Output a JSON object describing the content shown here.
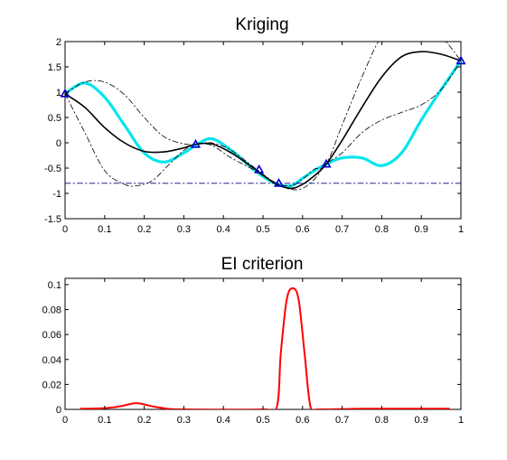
{
  "chart_data": [
    {
      "type": "line",
      "title": "Kriging",
      "xlabel": "",
      "ylabel": "",
      "xlim": [
        0,
        1
      ],
      "ylim": [
        -1.5,
        2
      ],
      "xticks": [
        "0",
        "0.1",
        "0.2",
        "0.3",
        "0.4",
        "0.5",
        "0.6",
        "0.7",
        "0.8",
        "0.9",
        "1"
      ],
      "yticks": [
        "-1.5",
        "-1",
        "-0.5",
        "0",
        "0.5",
        "1",
        "1.5",
        "2"
      ],
      "grid": false,
      "colors": {
        "true_function": "#00e5ee",
        "mean": "#000000",
        "bounds": "#000000",
        "minimum_line": "#000080",
        "observations": "#0000cc"
      },
      "series": [
        {
          "role": "true-function",
          "style": "cyan thick dotted",
          "x": [
            0,
            0.05,
            0.1,
            0.15,
            0.2,
            0.25,
            0.3,
            0.33,
            0.37,
            0.42,
            0.48,
            0.53,
            0.57,
            0.6,
            0.63,
            0.66,
            0.7,
            0.75,
            0.8,
            0.85,
            0.9,
            0.95,
            1
          ],
          "y": [
            0.97,
            1.18,
            0.9,
            0.35,
            -0.2,
            -0.38,
            -0.2,
            -0.05,
            0.08,
            -0.15,
            -0.55,
            -0.8,
            -0.85,
            -0.7,
            -0.55,
            -0.42,
            -0.3,
            -0.3,
            -0.45,
            -0.2,
            0.45,
            1.05,
            1.62
          ]
        },
        {
          "role": "kriging-mean",
          "style": "black solid",
          "x": [
            0,
            0.05,
            0.1,
            0.15,
            0.2,
            0.25,
            0.3,
            0.33,
            0.37,
            0.42,
            0.48,
            0.53,
            0.57,
            0.6,
            0.63,
            0.66,
            0.7,
            0.75,
            0.8,
            0.85,
            0.9,
            0.95,
            1
          ],
          "y": [
            0.97,
            0.7,
            0.3,
            0.0,
            -0.17,
            -0.18,
            -0.1,
            -0.03,
            -0.02,
            -0.2,
            -0.52,
            -0.8,
            -0.9,
            -0.82,
            -0.65,
            -0.42,
            0.05,
            0.7,
            1.3,
            1.7,
            1.8,
            1.75,
            1.62
          ]
        },
        {
          "role": "upper-bound",
          "style": "black dash-dot",
          "x": [
            0,
            0.05,
            0.1,
            0.15,
            0.2,
            0.25,
            0.3,
            0.33,
            0.37,
            0.42,
            0.48,
            0.53,
            0.57,
            0.6,
            0.63,
            0.66,
            0.7,
            0.75,
            0.8,
            0.85,
            0.9,
            0.95,
            1
          ],
          "y": [
            0.97,
            1.2,
            1.2,
            0.95,
            0.5,
            0.12,
            -0.02,
            -0.03,
            0.0,
            -0.15,
            -0.5,
            -0.78,
            -0.85,
            -0.72,
            -0.52,
            -0.42,
            0.35,
            1.3,
            2.1,
            2.3,
            2.3,
            2.1,
            1.62
          ]
        },
        {
          "role": "lower-bound",
          "style": "black dash-dot",
          "x": [
            0,
            0.05,
            0.1,
            0.15,
            0.18,
            0.22,
            0.26,
            0.3,
            0.33,
            0.37,
            0.42,
            0.48,
            0.53,
            0.57,
            0.6,
            0.63,
            0.66,
            0.7,
            0.75,
            0.8,
            0.85,
            0.9,
            0.95,
            1
          ],
          "y": [
            0.97,
            0.2,
            -0.55,
            -0.82,
            -0.85,
            -0.75,
            -0.45,
            -0.15,
            -0.03,
            -0.05,
            -0.3,
            -0.55,
            -0.8,
            -0.92,
            -0.9,
            -0.72,
            -0.42,
            -0.2,
            0.2,
            0.45,
            0.6,
            0.75,
            1.05,
            1.62
          ]
        },
        {
          "role": "current-minimum",
          "style": "navy dash-dot horizontal",
          "x": [
            0,
            1
          ],
          "y": [
            -0.8,
            -0.8
          ]
        }
      ],
      "observations": {
        "x": [
          0,
          0.33,
          0.49,
          0.54,
          0.66,
          1
        ],
        "y": [
          0.97,
          -0.03,
          -0.53,
          -0.8,
          -0.42,
          1.62
        ]
      }
    },
    {
      "type": "line",
      "title": "EI criterion",
      "xlabel": "",
      "ylabel": "",
      "xlim": [
        0,
        1
      ],
      "ylim": [
        0,
        0.105
      ],
      "xticks": [
        "0",
        "0.1",
        "0.2",
        "0.3",
        "0.4",
        "0.5",
        "0.6",
        "0.7",
        "0.8",
        "0.9",
        "1"
      ],
      "yticks": [
        "0",
        "0.02",
        "0.04",
        "0.06",
        "0.08",
        "0.1"
      ],
      "grid": false,
      "colors": {
        "ei": "#ff0000"
      },
      "series": [
        {
          "role": "expected-improvement",
          "style": "red solid",
          "x": [
            0.04,
            0.1,
            0.14,
            0.18,
            0.22,
            0.26,
            0.3,
            0.5,
            0.535,
            0.545,
            0.56,
            0.575,
            0.59,
            0.605,
            0.62,
            0.64,
            0.75,
            0.97
          ],
          "y": [
            0.0005,
            0.001,
            0.0025,
            0.005,
            0.0025,
            0.0005,
            0.0,
            0.0,
            0.002,
            0.045,
            0.088,
            0.097,
            0.088,
            0.045,
            0.002,
            0.0,
            0.0005,
            0.0005
          ]
        }
      ]
    }
  ]
}
